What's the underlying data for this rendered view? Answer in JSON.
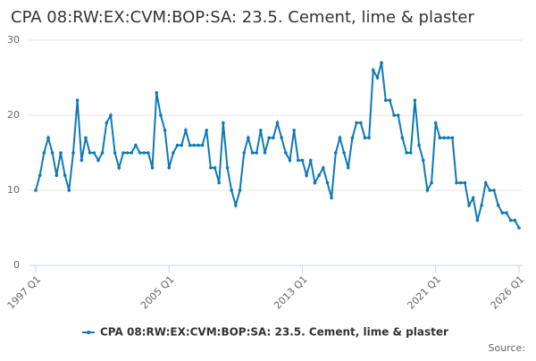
{
  "chart_data": {
    "type": "line",
    "title": "CPA 08:RW:EX:CVM:BOP:SA: 23.5. Cement, lime & plaster",
    "source": "Source:",
    "categories": [
      "1997 Q1",
      null,
      null,
      null,
      null,
      null,
      null,
      null,
      null,
      null,
      null,
      null,
      null,
      null,
      null,
      null,
      null,
      null,
      null,
      null,
      null,
      null,
      null,
      null,
      null,
      null,
      null,
      null,
      null,
      null,
      null,
      null,
      "2005 Q1",
      null,
      null,
      null,
      null,
      null,
      null,
      null,
      null,
      null,
      null,
      null,
      null,
      null,
      null,
      null,
      null,
      null,
      null,
      null,
      null,
      null,
      null,
      null,
      null,
      null,
      null,
      null,
      null,
      null,
      null,
      null,
      "2013 Q1",
      null,
      null,
      null,
      null,
      null,
      null,
      null,
      null,
      null,
      null,
      null,
      null,
      null,
      null,
      null,
      null,
      null,
      null,
      null,
      null,
      null,
      null,
      null,
      null,
      null,
      null,
      null,
      null,
      null,
      null,
      null,
      "2021 Q1",
      null,
      null,
      null,
      null,
      null,
      null,
      null,
      null,
      null,
      null,
      null,
      null,
      null,
      null,
      null,
      null,
      null,
      null,
      null,
      "2026 Q1"
    ],
    "series": [
      {
        "name": "CPA 08:RW:EX:CVM:BOP:SA: 23.5. Cement, lime & plaster",
        "color": "#0f79b8",
        "values": [
          10,
          12,
          15,
          17,
          15,
          12,
          15,
          12,
          10,
          15,
          22,
          14,
          17,
          15,
          15,
          14,
          15,
          19,
          20,
          15,
          13,
          15,
          15,
          15,
          16,
          15,
          15,
          15,
          13,
          23,
          20,
          18,
          13,
          15,
          16,
          16,
          18,
          16,
          16,
          16,
          16,
          18,
          13,
          13,
          11,
          19,
          13,
          10,
          8,
          10,
          15,
          17,
          15,
          15,
          18,
          15,
          17,
          17,
          19,
          17,
          15,
          14,
          18,
          14,
          14,
          12,
          14,
          11,
          12,
          13,
          11,
          9,
          15,
          17,
          15,
          13,
          17,
          19,
          19,
          17,
          17,
          26,
          25,
          27,
          22,
          22,
          20,
          20,
          17,
          15,
          15,
          22,
          16,
          14,
          10,
          11,
          19,
          17,
          17,
          17,
          17,
          11,
          11,
          11,
          8,
          9,
          6,
          8,
          11,
          10,
          10,
          8,
          7,
          7,
          6,
          6,
          5
        ]
      }
    ],
    "ylim": [
      0,
      30
    ],
    "yticks": [
      0,
      10,
      20,
      30
    ],
    "grid": true
  }
}
